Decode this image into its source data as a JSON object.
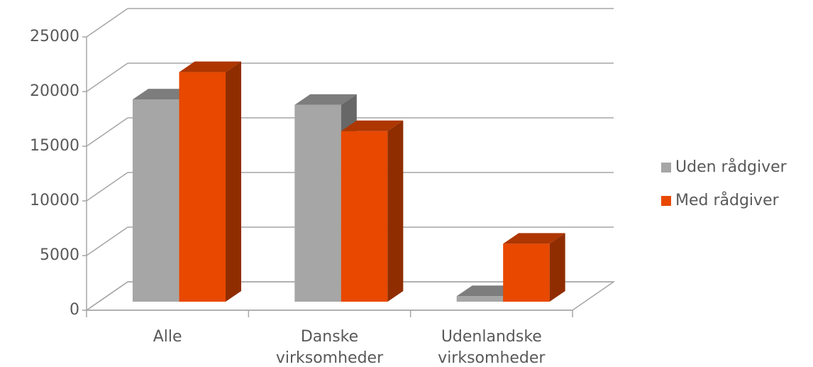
{
  "chart_data": {
    "type": "bar3d",
    "categories": [
      "Alle",
      "Danske virksomheder",
      "Udenlandske virksomheder"
    ],
    "series": [
      {
        "name": "Uden rådgiver",
        "color": "#a6a6a6",
        "values": [
          18500,
          18000,
          500
        ]
      },
      {
        "name": "Med rådgiver",
        "color": "#e84800",
        "values": [
          21000,
          15600,
          5300
        ]
      }
    ],
    "ylim": [
      0,
      25000
    ],
    "yticks": [
      0,
      5000,
      10000,
      15000,
      20000,
      25000
    ],
    "grid": true,
    "legend": "right"
  }
}
